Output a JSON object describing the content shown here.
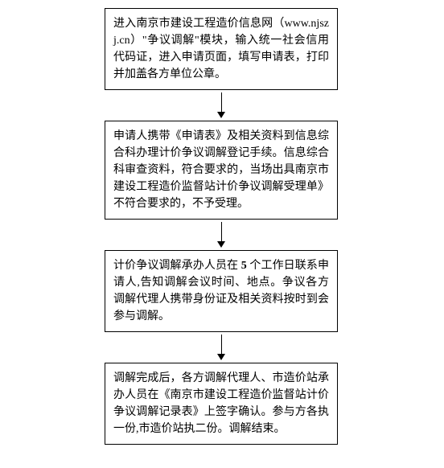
{
  "flowchart": {
    "type": "flowchart",
    "direction": "vertical",
    "node_border_color": "#000000",
    "node_background": "#ffffff",
    "arrow_color": "#000000",
    "font_family": "SimSun",
    "font_size": 14,
    "text_color": "#000000",
    "nodes": [
      {
        "id": "step1",
        "text_parts": [
          "进入南京市建设工程造价信息网（www.njszj.cn）\"争议调解\"模块，输入统一社会信用代码证，进入申请页面，填写申请表，打印并加盖各方单位公章。"
        ]
      },
      {
        "id": "step2",
        "text_parts": [
          "申请人携带《申请表》及相关资料到信息综合科办理计价争议调解登记手续。信息综合科审查资料，符合要求的，当场出具南京市建设工程造价监督站计价争议调解受理单》不符合要求的，不予受理。"
        ]
      },
      {
        "id": "step3",
        "text_prefix": "计价争议调解承办人员在 ",
        "text_bold": "5",
        "text_suffix": " 个工作日联系申请人,告知调解会议时间、地点。争议各方调解代理人携带身份证及相关资料按时到会参与调解。"
      },
      {
        "id": "step4",
        "text_parts": [
          "调解完成后，各方调解代理人、市造价站承办人员在《南京市建设工程造价监督站计价争议调解记录表》上签字确认。参与方各执一份,市造价站执二份。调解结束。"
        ]
      }
    ]
  }
}
